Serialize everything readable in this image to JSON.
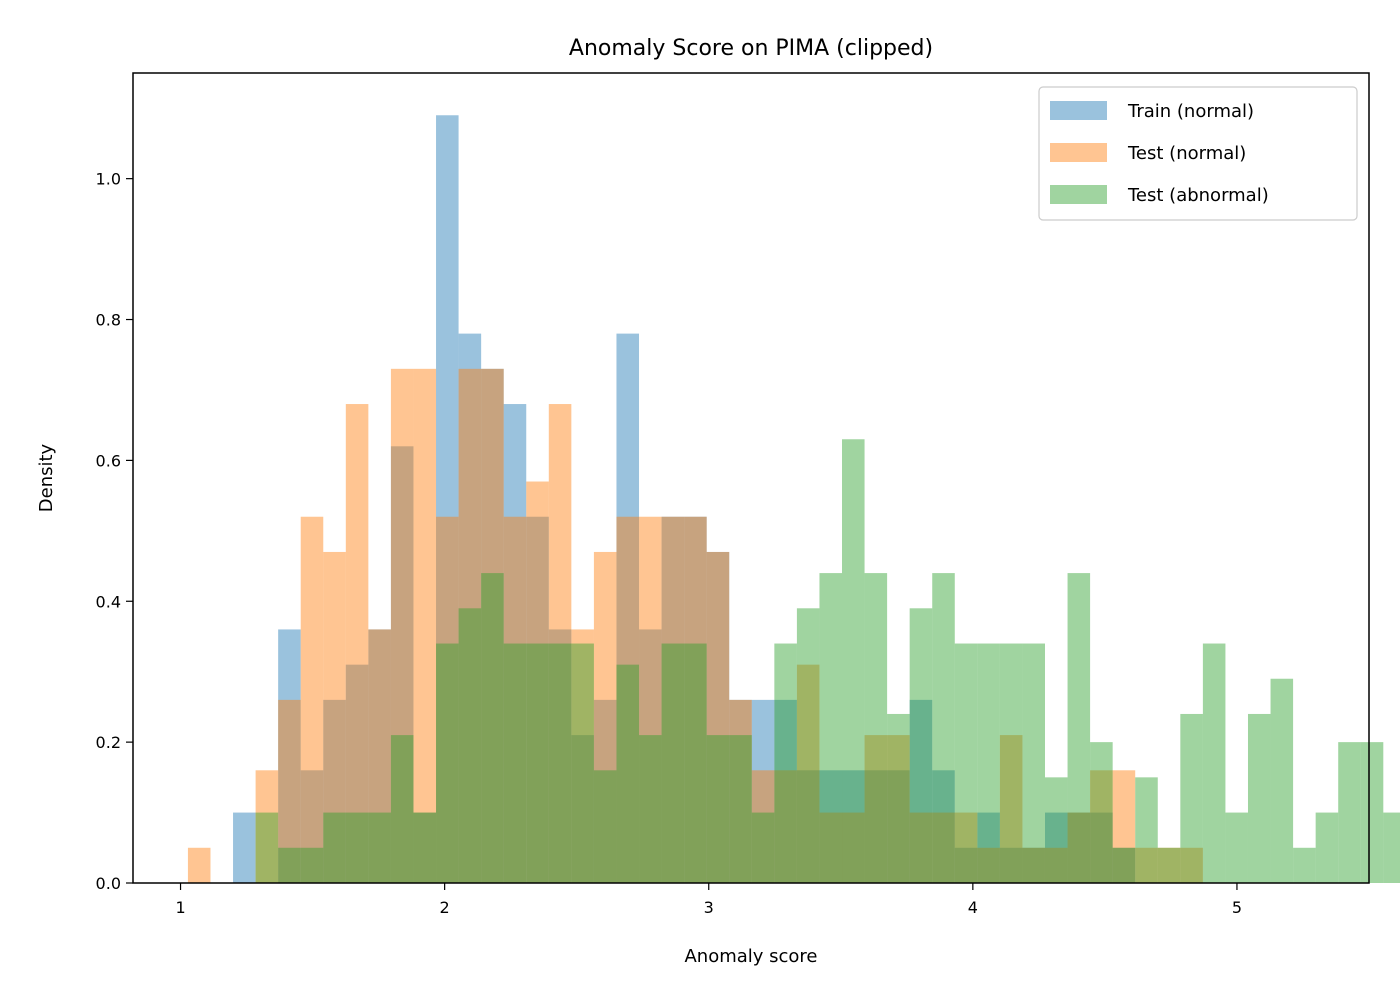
{
  "chart_data": {
    "type": "bar",
    "subtype": "overlapping histogram",
    "title": "Anomaly Score on PIMA (clipped)",
    "xlabel": "Anomaly score",
    "ylabel": "Density",
    "xlim": [
      0.82,
      5.5
    ],
    "ylim": [
      0,
      1.15
    ],
    "xticks": [
      1,
      2,
      3,
      4,
      5
    ],
    "yticks": [
      0.0,
      0.2,
      0.4,
      0.6,
      0.8,
      1.0
    ],
    "xtick_labels": [
      "1",
      "2",
      "3",
      "4",
      "5"
    ],
    "ytick_labels": [
      "0.0",
      "0.2",
      "0.4",
      "0.6",
      "0.8",
      "1.0"
    ],
    "grid": false,
    "legend_position": "top-right",
    "bin_start": 1.028,
    "bin_width": 0.0854,
    "series": [
      {
        "name": "Train (normal)",
        "color": "#1f77b4",
        "alpha": 0.45,
        "values": [
          0,
          0,
          0.1,
          0,
          0.36,
          0.16,
          0.26,
          0.31,
          0.36,
          0.62,
          0.1,
          1.09,
          0.78,
          0.73,
          0.68,
          0.52,
          0.36,
          0.21,
          0.26,
          0.78,
          0.36,
          0.52,
          0.52,
          0.47,
          0.26,
          0.26,
          0.26,
          0.16,
          0.16,
          0.16,
          0.16,
          0.16,
          0.26,
          0.16,
          0.05,
          0.1,
          0.05,
          0.05,
          0.1,
          0.1,
          0.1,
          0.05,
          0,
          0,
          0,
          0,
          0,
          0,
          0,
          0,
          0,
          0,
          0,
          0,
          0
        ]
      },
      {
        "name": "Test (normal)",
        "color": "#ff7f0e",
        "alpha": 0.45,
        "values": [
          0.05,
          0,
          0,
          0.16,
          0.26,
          0.52,
          0.47,
          0.68,
          0.36,
          0.73,
          0.73,
          0.52,
          0.73,
          0.73,
          0.52,
          0.57,
          0.68,
          0.36,
          0.47,
          0.52,
          0.52,
          0.52,
          0.52,
          0.47,
          0.26,
          0.16,
          0.16,
          0.31,
          0.1,
          0.1,
          0.21,
          0.21,
          0.1,
          0.1,
          0.1,
          0.05,
          0.21,
          0.05,
          0.05,
          0.1,
          0.16,
          0.16,
          0.05,
          0.05,
          0.05,
          0,
          0,
          0,
          0,
          0,
          0,
          0,
          0,
          0,
          0
        ]
      },
      {
        "name": "Test (abnormal)",
        "color": "#2ca02c",
        "alpha": 0.45,
        "values": [
          0,
          0,
          0,
          0.1,
          0.05,
          0.05,
          0.1,
          0.1,
          0.1,
          0.21,
          0.1,
          0.34,
          0.39,
          0.44,
          0.34,
          0.34,
          0.34,
          0.34,
          0.16,
          0.31,
          0.21,
          0.34,
          0.34,
          0.21,
          0.21,
          0.1,
          0.34,
          0.39,
          0.44,
          0.63,
          0.44,
          0.24,
          0.39,
          0.44,
          0.34,
          0.34,
          0.34,
          0.34,
          0.15,
          0.44,
          0.2,
          0.05,
          0.15,
          0.05,
          0.24,
          0.34,
          0.1,
          0.24,
          0.29,
          0.05,
          0.1,
          0.2,
          0.2,
          0.1,
          0
        ]
      }
    ]
  }
}
